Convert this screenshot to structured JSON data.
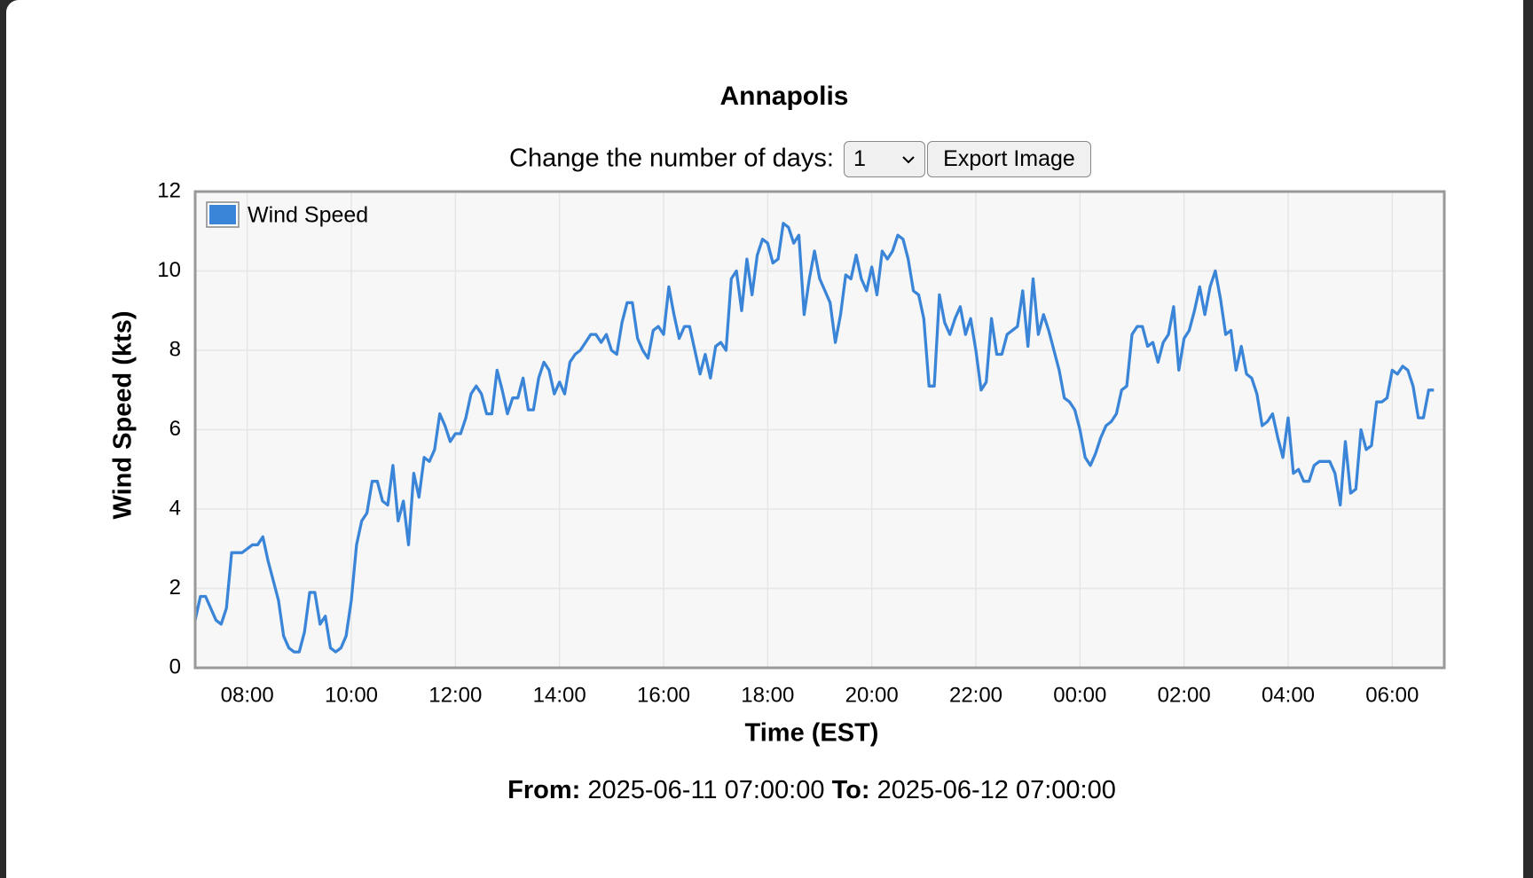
{
  "chart_data": {
    "type": "line",
    "title": "Annapolis",
    "xlabel": "Time (EST)",
    "ylabel": "Wind Speed (kts)",
    "xlim": [
      420,
      1860
    ],
    "ylim": [
      0,
      12
    ],
    "xticks": [
      {
        "value": 480,
        "label": "08:00"
      },
      {
        "value": 600,
        "label": "10:00"
      },
      {
        "value": 720,
        "label": "12:00"
      },
      {
        "value": 840,
        "label": "14:00"
      },
      {
        "value": 960,
        "label": "16:00"
      },
      {
        "value": 1080,
        "label": "18:00"
      },
      {
        "value": 1200,
        "label": "20:00"
      },
      {
        "value": 1320,
        "label": "22:00"
      },
      {
        "value": 1440,
        "label": "00:00"
      },
      {
        "value": 1560,
        "label": "02:00"
      },
      {
        "value": 1680,
        "label": "04:00"
      },
      {
        "value": 1800,
        "label": "06:00"
      }
    ],
    "yticks": [
      0,
      2,
      4,
      6,
      8,
      10,
      12
    ],
    "grid": true,
    "legend": "upper left",
    "x": [
      420,
      426,
      432,
      438,
      444,
      450,
      456,
      462,
      468,
      474,
      480,
      486,
      492,
      498,
      504,
      510,
      516,
      522,
      528,
      534,
      540,
      546,
      552,
      558,
      564,
      570,
      576,
      582,
      588,
      594,
      600,
      606,
      612,
      618,
      624,
      630,
      636,
      642,
      648,
      654,
      660,
      666,
      672,
      678,
      684,
      690,
      696,
      702,
      708,
      714,
      720,
      726,
      732,
      738,
      744,
      750,
      756,
      762,
      768,
      774,
      780,
      786,
      792,
      798,
      804,
      810,
      816,
      822,
      828,
      834,
      840,
      846,
      852,
      858,
      864,
      870,
      876,
      882,
      888,
      894,
      900,
      906,
      912,
      918,
      924,
      930,
      936,
      942,
      948,
      954,
      960,
      966,
      972,
      978,
      984,
      990,
      996,
      1002,
      1008,
      1014,
      1020,
      1026,
      1032,
      1038,
      1044,
      1050,
      1056,
      1062,
      1068,
      1074,
      1080,
      1086,
      1092,
      1098,
      1104,
      1110,
      1116,
      1122,
      1128,
      1134,
      1140,
      1146,
      1152,
      1158,
      1164,
      1170,
      1176,
      1182,
      1188,
      1194,
      1200,
      1206,
      1212,
      1218,
      1224,
      1230,
      1236,
      1242,
      1248,
      1254,
      1260,
      1266,
      1272,
      1278,
      1284,
      1290,
      1296,
      1302,
      1308,
      1314,
      1320,
      1326,
      1332,
      1338,
      1344,
      1350,
      1356,
      1362,
      1368,
      1374,
      1380,
      1386,
      1392,
      1398,
      1404,
      1410,
      1416,
      1422,
      1428,
      1434,
      1440,
      1446,
      1452,
      1458,
      1464,
      1470,
      1476,
      1482,
      1488,
      1494,
      1500,
      1506,
      1512,
      1518,
      1524,
      1530,
      1536,
      1542,
      1548,
      1554,
      1560,
      1566,
      1572,
      1578,
      1584,
      1590,
      1596,
      1602,
      1608,
      1614,
      1620,
      1626,
      1632,
      1638,
      1644,
      1650,
      1656,
      1662,
      1668,
      1674,
      1680,
      1686,
      1692,
      1698,
      1704,
      1710,
      1716,
      1722,
      1728,
      1734,
      1740,
      1746,
      1752,
      1758,
      1764,
      1770,
      1776,
      1782,
      1788,
      1794,
      1800,
      1806,
      1812,
      1818,
      1824,
      1830,
      1836,
      1842,
      1848
    ],
    "series": [
      {
        "name": "Wind Speed",
        "color": "#3a85d8",
        "values": [
          1.2,
          1.8,
          1.8,
          1.5,
          1.2,
          1.1,
          1.5,
          2.9,
          2.9,
          2.9,
          3.0,
          3.1,
          3.1,
          3.3,
          2.7,
          2.2,
          1.7,
          0.8,
          0.5,
          0.4,
          0.4,
          0.9,
          1.9,
          1.9,
          1.1,
          1.3,
          0.5,
          0.4,
          0.5,
          0.8,
          1.7,
          3.1,
          3.7,
          3.9,
          4.7,
          4.7,
          4.2,
          4.1,
          5.1,
          3.7,
          4.2,
          3.1,
          4.9,
          4.3,
          5.3,
          5.2,
          5.5,
          6.4,
          6.1,
          5.7,
          5.9,
          5.9,
          6.3,
          6.9,
          7.1,
          6.9,
          6.4,
          6.4,
          7.5,
          7.0,
          6.4,
          6.8,
          6.8,
          7.3,
          6.5,
          6.5,
          7.3,
          7.7,
          7.5,
          6.9,
          7.2,
          6.9,
          7.7,
          7.9,
          8.0,
          8.2,
          8.4,
          8.4,
          8.2,
          8.4,
          8.0,
          7.9,
          8.7,
          9.2,
          9.2,
          8.3,
          8.0,
          7.8,
          8.5,
          8.6,
          8.4,
          9.6,
          8.9,
          8.3,
          8.6,
          8.6,
          8.0,
          7.4,
          7.9,
          7.3,
          8.1,
          8.2,
          8.0,
          9.8,
          10.0,
          9.0,
          10.3,
          9.4,
          10.4,
          10.8,
          10.7,
          10.2,
          10.3,
          11.2,
          11.1,
          10.7,
          10.9,
          8.9,
          9.8,
          10.5,
          9.8,
          9.5,
          9.2,
          8.2,
          8.9,
          9.9,
          9.8,
          10.4,
          9.8,
          9.5,
          10.1,
          9.4,
          10.5,
          10.3,
          10.5,
          10.9,
          10.8,
          10.3,
          9.5,
          9.4,
          8.8,
          7.1,
          7.1,
          9.4,
          8.7,
          8.4,
          8.8,
          9.1,
          8.4,
          8.8,
          8.0,
          7.0,
          7.2,
          8.8,
          7.9,
          7.9,
          8.4,
          8.5,
          8.6,
          9.5,
          8.1,
          9.8,
          8.4,
          8.9,
          8.5,
          8.0,
          7.5,
          6.8,
          6.7,
          6.5,
          6.0,
          5.3,
          5.1,
          5.4,
          5.8,
          6.1,
          6.2,
          6.4,
          7.0,
          7.1,
          8.4,
          8.6,
          8.6,
          8.1,
          8.2,
          7.7,
          8.2,
          8.4,
          9.1,
          7.5,
          8.3,
          8.5,
          9.0,
          9.6,
          8.9,
          9.6,
          10.0,
          9.3,
          8.4,
          8.5,
          7.5,
          8.1,
          7.4,
          7.3,
          6.9,
          6.1,
          6.2,
          6.4,
          5.8,
          5.3,
          6.3,
          4.9,
          5.0,
          4.7,
          4.7,
          5.1,
          5.2,
          5.2,
          5.2,
          4.9,
          4.1,
          5.7,
          4.4,
          4.5,
          6.0,
          5.5,
          5.6,
          6.7,
          6.7,
          6.8,
          7.5,
          7.4,
          7.6,
          7.5,
          7.1,
          6.3,
          6.3,
          7.0,
          7.0
        ]
      }
    ]
  },
  "controls": {
    "label": "Change the number of days:",
    "days": "1",
    "button": "Export Image"
  },
  "footer": {
    "from_label": "From:",
    "from": "2025-06-11 07:00:00",
    "to_label": "To:",
    "to": "2025-06-12 07:00:00"
  }
}
